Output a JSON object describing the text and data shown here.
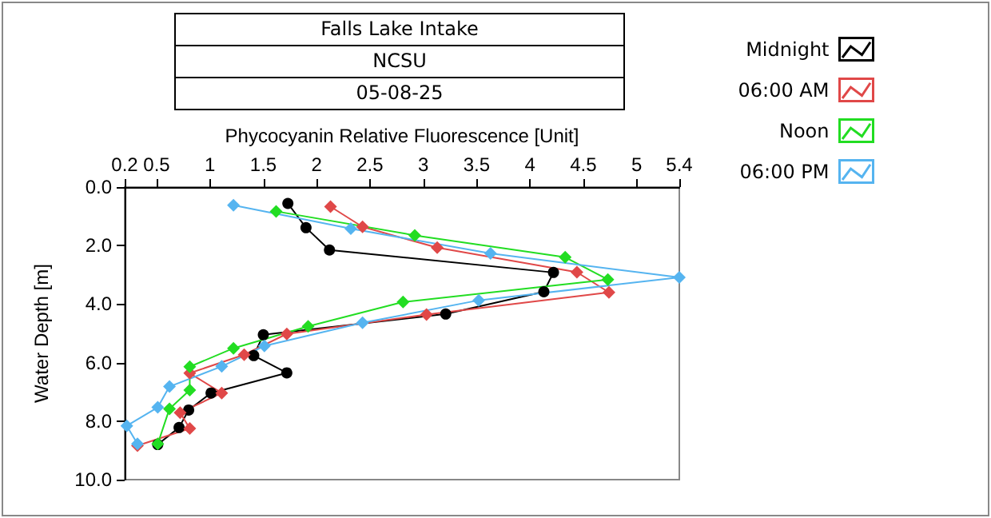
{
  "chart_data": {
    "type": "line",
    "title": "Falls Lake Intake",
    "subtitle": "NCSU",
    "annotations": [
      "05-08-25"
    ],
    "xlabel": "Phycocyanin Relative Fluorescence [Unit]",
    "ylabel": "Water Depth [m]",
    "xlim": [
      0.2,
      5.4
    ],
    "xticks": [
      0.2,
      0.5,
      1,
      1.5,
      2,
      2.5,
      3,
      3.5,
      4,
      4.5,
      5,
      5.4
    ],
    "ylim": [
      10,
      0
    ],
    "yticks": [
      {
        "value": 0,
        "label": "0.0"
      },
      {
        "value": 2,
        "label": "2.0"
      },
      {
        "value": 4,
        "label": "4.0"
      },
      {
        "value": 6,
        "label": "6.0"
      },
      {
        "value": 8,
        "label": "8.0"
      },
      {
        "value": 10,
        "label": "10.0"
      }
    ],
    "grid": false,
    "legend": "top right",
    "line_style": "solid",
    "series": [
      {
        "name": "Midnight",
        "color": "#000000",
        "marker": "circle",
        "x": [
          1.73,
          1.9,
          2.12,
          4.22,
          4.13,
          3.21,
          1.5,
          1.41,
          1.72,
          1.01,
          0.8,
          0.71,
          0.51
        ],
        "values": [
          0.56,
          1.39,
          2.15,
          2.92,
          3.58,
          4.34,
          5.05,
          5.76,
          6.35,
          7.04,
          7.62,
          8.22,
          8.8
        ]
      },
      {
        "name": "06:00 AM",
        "color": "#e04848",
        "marker": "diamond",
        "x": [
          2.13,
          2.43,
          3.13,
          4.44,
          4.74,
          3.03,
          1.72,
          1.32,
          0.81,
          1.11,
          0.72,
          0.81,
          0.32
        ],
        "values": [
          0.67,
          1.36,
          2.07,
          2.91,
          3.6,
          4.36,
          5.02,
          5.73,
          6.36,
          7.04,
          7.71,
          8.25,
          8.84
        ]
      },
      {
        "name": "Noon",
        "color": "#22dd22",
        "marker": "diamond",
        "x": [
          1.62,
          2.92,
          4.33,
          4.73,
          2.81,
          1.92,
          1.22,
          0.81,
          0.81,
          0.62,
          0.51
        ],
        "values": [
          0.83,
          1.65,
          2.4,
          3.16,
          3.93,
          4.76,
          5.51,
          6.14,
          6.94,
          7.58,
          8.78
        ]
      },
      {
        "name": "06:00 PM",
        "color": "#55b4f0",
        "marker": "diamond",
        "x": [
          1.22,
          2.32,
          3.63,
          5.4,
          3.52,
          2.43,
          1.51,
          1.11,
          0.62,
          0.51,
          0.22,
          0.32
        ],
        "values": [
          0.62,
          1.42,
          2.27,
          3.09,
          3.87,
          4.64,
          5.43,
          6.13,
          6.82,
          7.53,
          8.16,
          8.78
        ]
      }
    ]
  }
}
